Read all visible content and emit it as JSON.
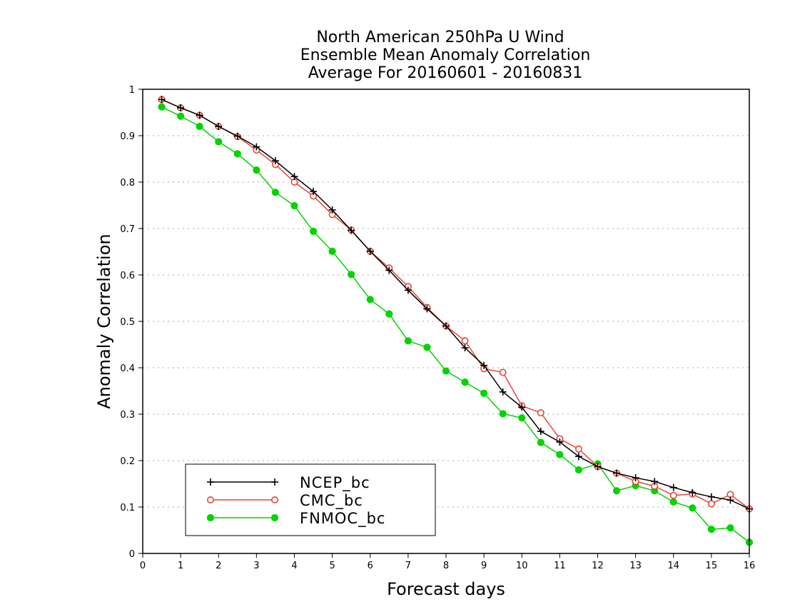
{
  "chart_data": {
    "type": "line",
    "title": [
      "North American 250hPa U Wind",
      "Ensemble Mean Anomaly Correlation",
      "Average For 20160601 - 20160831"
    ],
    "xlabel": "Forecast days",
    "ylabel": "Anomaly Correlation",
    "xlim": [
      0,
      16
    ],
    "ylim": [
      0,
      1
    ],
    "xticks": [
      "0",
      "1",
      "2",
      "3",
      "4",
      "5",
      "6",
      "7",
      "8",
      "9",
      "10",
      "11",
      "12",
      "13",
      "14",
      "15",
      "16"
    ],
    "yticks": [
      "0",
      "0.1",
      "0.2",
      "0.3",
      "0.4",
      "0.5",
      "0.6",
      "0.7",
      "0.8",
      "0.9",
      "1"
    ],
    "grid": true,
    "legend_position": "bottom-left",
    "x": [
      0.5,
      1,
      1.5,
      2,
      2.5,
      3,
      3.5,
      4,
      4.5,
      5,
      5.5,
      6,
      6.5,
      7,
      7.5,
      8,
      8.5,
      9,
      9.5,
      10,
      10.5,
      11,
      11.5,
      12,
      12.5,
      13,
      13.5,
      14,
      14.5,
      15,
      15.5,
      16
    ],
    "series": [
      {
        "name": "NCEP_bc",
        "color": "#000000",
        "marker": "plus",
        "values": [
          0.978,
          0.96,
          0.944,
          0.92,
          0.899,
          0.876,
          0.846,
          0.812,
          0.78,
          0.74,
          0.696,
          0.651,
          0.61,
          0.567,
          0.527,
          0.49,
          0.443,
          0.405,
          0.348,
          0.315,
          0.263,
          0.24,
          0.209,
          0.187,
          0.173,
          0.163,
          0.155,
          0.142,
          0.131,
          0.122,
          0.115,
          0.096
        ]
      },
      {
        "name": "CMC_bc",
        "color": "#e8443a",
        "marker": "open-circle",
        "values": [
          0.978,
          0.96,
          0.944,
          0.92,
          0.898,
          0.869,
          0.838,
          0.8,
          0.77,
          0.73,
          0.697,
          0.651,
          0.615,
          0.575,
          0.53,
          0.49,
          0.458,
          0.398,
          0.39,
          0.318,
          0.303,
          0.247,
          0.225,
          0.187,
          0.173,
          0.155,
          0.145,
          0.125,
          0.128,
          0.107,
          0.127,
          0.096
        ]
      },
      {
        "name": "FNMOC_bc",
        "color": "#00d400",
        "marker": "filled-circle",
        "values": [
          0.962,
          0.942,
          0.92,
          0.887,
          0.861,
          0.826,
          0.778,
          0.749,
          0.694,
          0.651,
          0.601,
          0.547,
          0.516,
          0.458,
          0.444,
          0.393,
          0.369,
          0.345,
          0.301,
          0.292,
          0.239,
          0.213,
          0.18,
          0.193,
          0.135,
          0.146,
          0.135,
          0.111,
          0.098,
          0.052,
          0.055,
          0.024
        ]
      }
    ]
  }
}
